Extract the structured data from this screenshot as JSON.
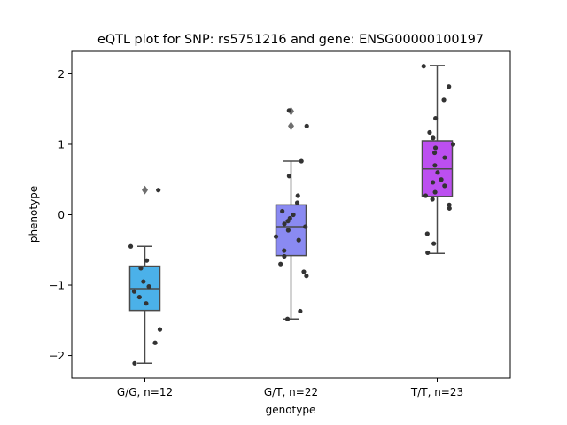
{
  "chart_data": {
    "type": "box",
    "title": "eQTL plot for SNP: rs5751216 and gene: ENSG00000100197",
    "xlabel": "genotype",
    "ylabel": "phenotype",
    "ylim": [
      -2.32,
      2.32
    ],
    "yticks": [
      -2,
      -1,
      0,
      1,
      2
    ],
    "ytick_labels": [
      "−2",
      "−1",
      "0",
      "1",
      "2"
    ],
    "grid": false,
    "legend": "none",
    "categories": [
      "G/G, n=12",
      "G/T, n=22",
      "T/T, n=23"
    ],
    "boxes": [
      {
        "category": "G/G, n=12",
        "color": "#4bb1e9",
        "whislo": -2.11,
        "q1": -1.36,
        "median": -1.05,
        "q3": -0.73,
        "whishi": -0.45,
        "fliers": [
          0.35
        ]
      },
      {
        "category": "G/T, n=22",
        "color": "#8a8af2",
        "whislo": -1.48,
        "q1": -0.58,
        "median": -0.17,
        "q3": 0.14,
        "whishi": 0.76,
        "fliers": [
          1.47,
          1.26
        ]
      },
      {
        "category": "T/T, n=23",
        "color": "#bc4ff0",
        "whislo": -0.55,
        "q1": 0.26,
        "median": 0.65,
        "q3": 1.05,
        "whishi": 2.12,
        "fliers": []
      }
    ],
    "points": [
      {
        "category": "G/G, n=12",
        "values": [
          0.35,
          -0.45,
          -0.65,
          -0.76,
          -0.95,
          -1.02,
          -1.09,
          -1.17,
          -1.26,
          -1.63,
          -1.82,
          -2.11
        ]
      },
      {
        "category": "G/T, n=22",
        "values": [
          1.48,
          1.26,
          0.76,
          0.55,
          0.27,
          0.17,
          0.05,
          0.0,
          -0.05,
          -0.09,
          -0.13,
          -0.17,
          -0.22,
          -0.31,
          -0.36,
          -0.51,
          -0.59,
          -0.7,
          -0.81,
          -0.87,
          -1.37,
          -1.48
        ]
      },
      {
        "category": "T/T, n=23",
        "values": [
          2.11,
          1.82,
          1.63,
          1.37,
          1.17,
          1.09,
          1.0,
          0.95,
          0.88,
          0.81,
          0.7,
          0.6,
          0.5,
          0.46,
          0.41,
          0.32,
          0.27,
          0.22,
          0.14,
          0.09,
          -0.27,
          -0.41,
          -0.54
        ]
      }
    ]
  }
}
